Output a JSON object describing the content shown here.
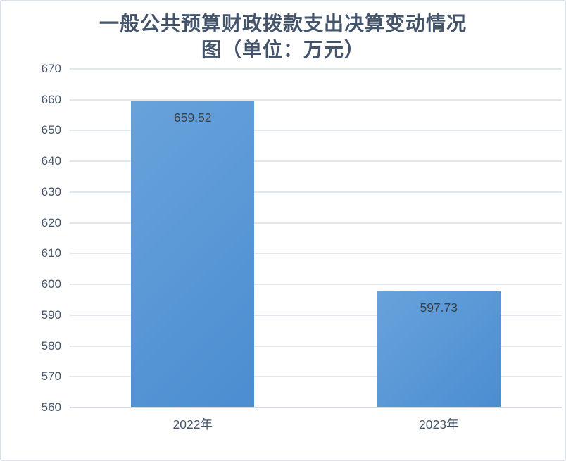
{
  "chart_data": {
    "type": "bar",
    "title": "一般公共预算财政拨款支出决算变动情况图（单位：万元）",
    "title_display": "一般公共预算财政拨款支出决算变动情况\n图（单位：万元）",
    "categories": [
      "2022年",
      "2023年"
    ],
    "values": [
      659.52,
      597.73
    ],
    "value_labels": [
      "659.52",
      "597.73"
    ],
    "xlabel": "",
    "ylabel": "",
    "ylim": [
      560,
      670
    ],
    "ytick_step": 10,
    "yticks": [
      560,
      570,
      580,
      590,
      600,
      610,
      620,
      630,
      640,
      650,
      660,
      670
    ],
    "grid": true,
    "legend_position": "none"
  },
  "colors": {
    "title_text": "#44546A",
    "axis_text": "#44546A",
    "data_label_text": "#3F3F3F",
    "gridline": "#E2E7EE",
    "axis_line": "#D3DAE3",
    "bar_gradient_start": "#68A2DB",
    "bar_gradient_end": "#4B8DD1",
    "background": "#FFFFFF",
    "frame_border": "#DBDFE6"
  }
}
